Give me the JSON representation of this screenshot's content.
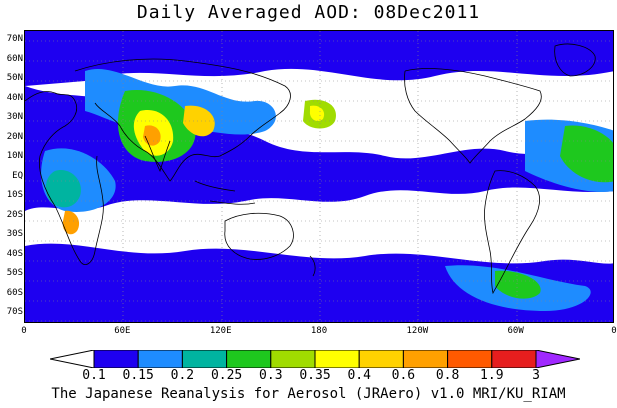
{
  "title": "Daily Averaged AOD: 08Dec2011",
  "credit": "The Japanese Reanalysis for Aerosol (JRAero) v1.0 MRI/KU_RIAM",
  "map": {
    "lat_labels": [
      "70N",
      "60N",
      "50N",
      "40N",
      "30N",
      "20N",
      "10N",
      "EQ",
      "10S",
      "20S",
      "30S",
      "40S",
      "50S",
      "60S",
      "70S"
    ],
    "lon_labels": [
      "0",
      "60E",
      "120E",
      "180",
      "120W",
      "60W",
      "0"
    ]
  },
  "colorbar": {
    "labels": [
      "0.1",
      "0.15",
      "0.2",
      "0.25",
      "0.3",
      "0.35",
      "0.4",
      "0.6",
      "0.8",
      "1.9",
      "3"
    ],
    "colors": [
      "#ffffff",
      "#1e00f0",
      "#1e8cff",
      "#00b4a0",
      "#1ec81e",
      "#a0dc00",
      "#ffff00",
      "#ffd200",
      "#ffa000",
      "#ff5a00",
      "#e61e1e",
      "#a028ff"
    ]
  }
}
